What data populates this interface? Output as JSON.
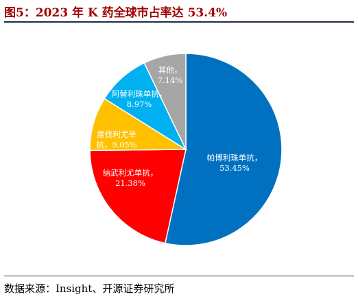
{
  "title": "图5：2023 年 K 药全球市占率达 53.4%",
  "source": "数据来源：Insight、开源证券研究所",
  "chart_data": {
    "type": "pie",
    "title": "图5：2023 年 K 药全球市占率达 53.4%",
    "unit": "%",
    "slices": [
      {
        "name": "帕博利珠单抗",
        "value": 53.45,
        "label": "53.45%",
        "color": "#0070c0",
        "label_color": "#ffffff"
      },
      {
        "name": "纳武利尤单抗",
        "value": 21.38,
        "label": "21.38%",
        "color": "#ff0000",
        "label_color": "#ffffff"
      },
      {
        "name": "度伐利尤单",
        "label_line2_prefix": "抗，",
        "value": 9.05,
        "label": "9.05%",
        "color": "#ffc000",
        "label_color": "#ffffff"
      },
      {
        "name": "阿替利珠单抗",
        "value": 8.97,
        "label": "8.97%",
        "color": "#00b0f0",
        "label_color": "#ffffff"
      },
      {
        "name": "其他",
        "value": 7.14,
        "label": "7.14%",
        "color": "#a6a6a6",
        "label_color": "#ffffff"
      }
    ]
  }
}
